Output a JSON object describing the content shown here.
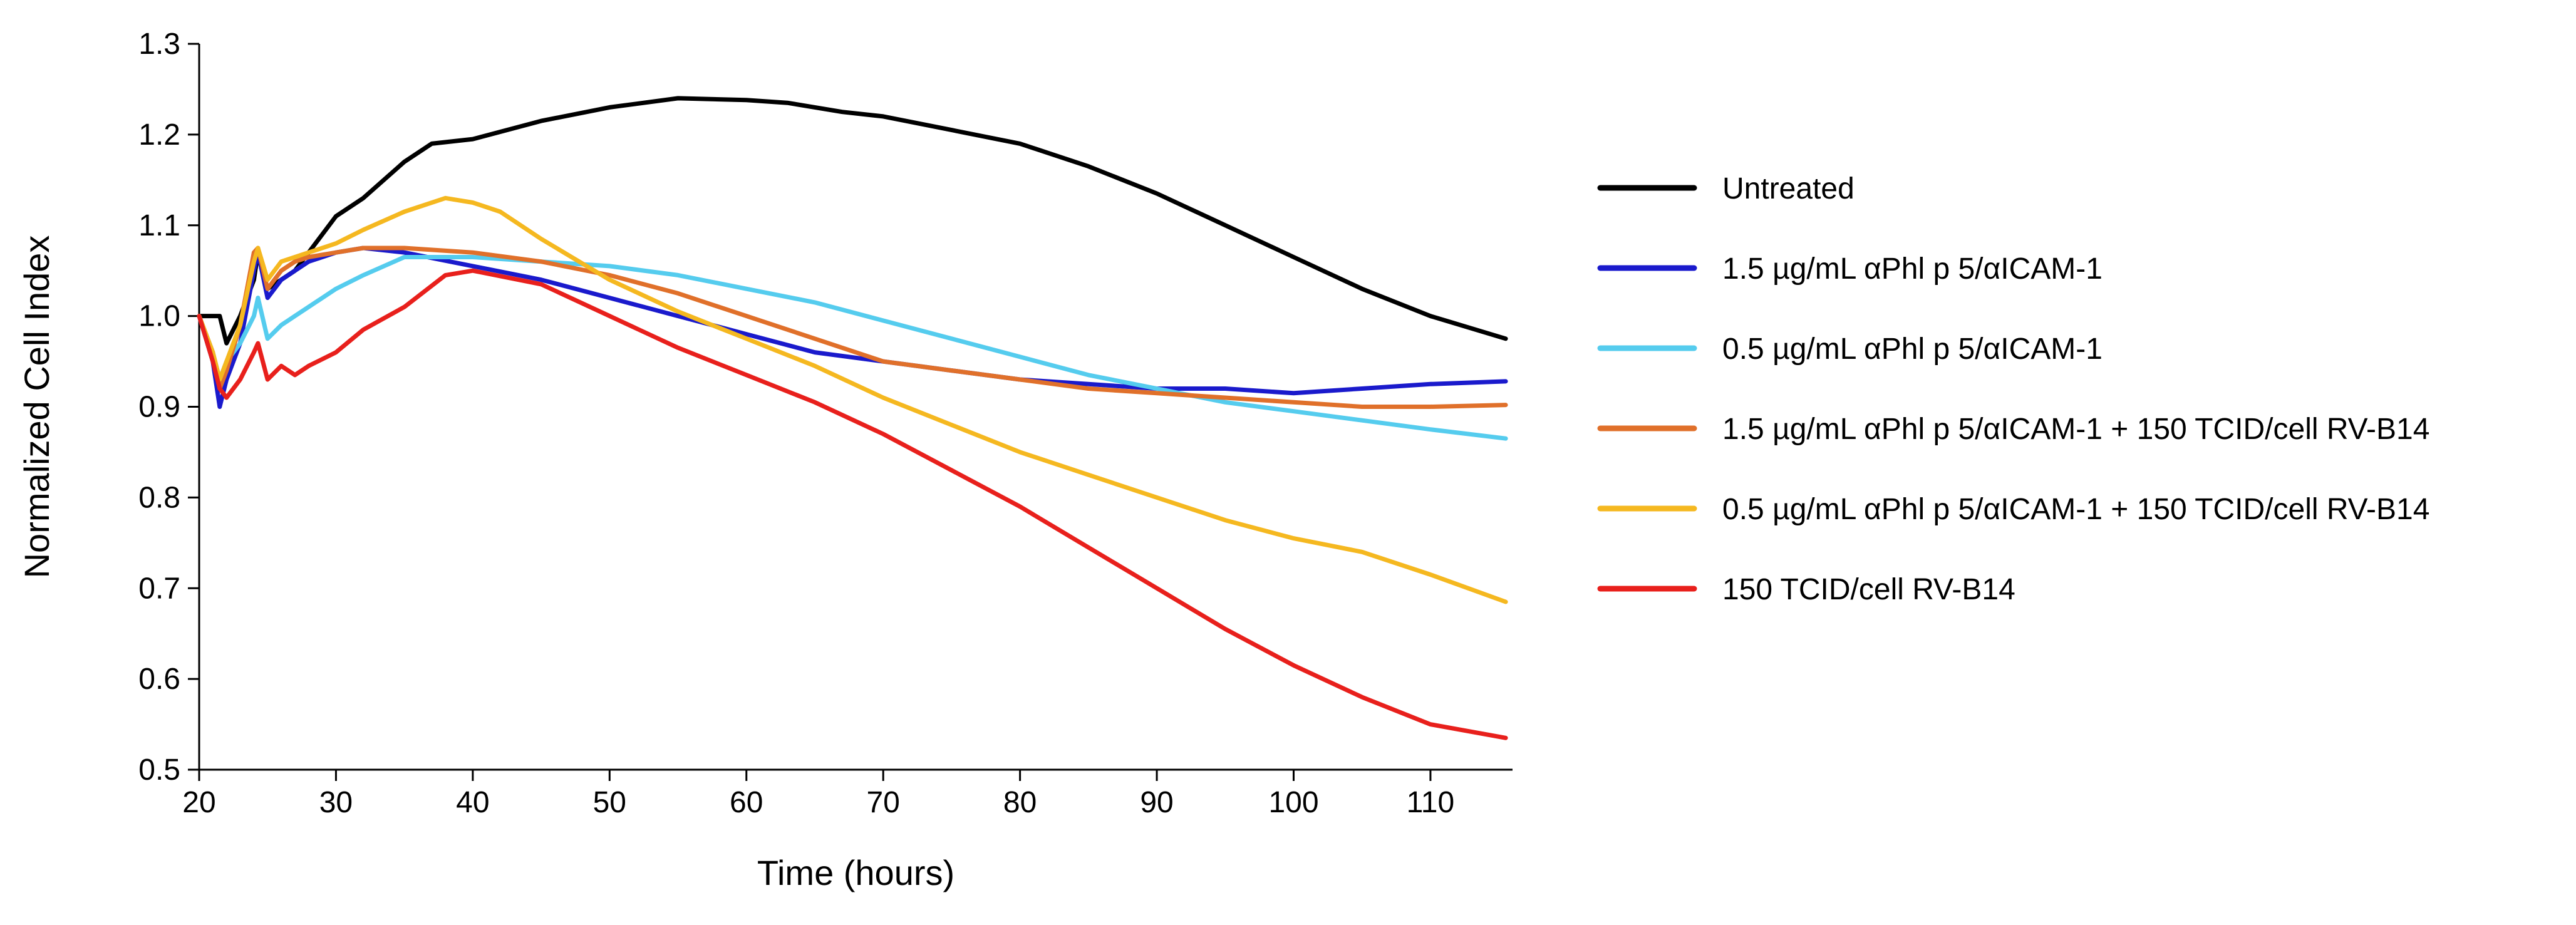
{
  "chart_data": {
    "type": "line",
    "title": "",
    "xlabel": "Time (hours)",
    "ylabel": "Normalized Cell Index",
    "xlim": [
      20,
      116
    ],
    "ylim": [
      0.5,
      1.3
    ],
    "xticks": [
      20,
      30,
      40,
      50,
      60,
      70,
      80,
      90,
      100,
      110
    ],
    "yticks": [
      0.5,
      0.6,
      0.7,
      0.8,
      0.9,
      1.0,
      1.1,
      1.2,
      1.3
    ],
    "ytick_labels": [
      "0.5",
      "0.6",
      "0.7",
      "0.8",
      "0.9",
      "1.0",
      "1.1",
      "1.2",
      "1.3"
    ],
    "grid": false,
    "legend_position": "right",
    "series": [
      {
        "name": "Untreated",
        "color": "#000000",
        "x": [
          20,
          21,
          21.5,
          22,
          23,
          24,
          24.3,
          25,
          26,
          27,
          28,
          30,
          32,
          35,
          37,
          40,
          45,
          50,
          55,
          60,
          63,
          67,
          70,
          75,
          80,
          85,
          90,
          95,
          100,
          105,
          110,
          115.5
        ],
        "y": [
          1.0,
          1.0,
          1.0,
          0.97,
          1.0,
          1.04,
          1.07,
          1.03,
          1.04,
          1.05,
          1.07,
          1.11,
          1.13,
          1.17,
          1.19,
          1.195,
          1.215,
          1.23,
          1.24,
          1.238,
          1.235,
          1.225,
          1.22,
          1.205,
          1.19,
          1.165,
          1.135,
          1.1,
          1.065,
          1.03,
          1.0,
          0.975
        ]
      },
      {
        "name": "1.5 µg/mL αPhl p 5/αICAM-1",
        "color": "#1a1acc",
        "x": [
          20,
          21,
          21.5,
          22,
          23,
          24,
          24.3,
          25,
          26,
          27,
          28,
          30,
          32,
          35,
          40,
          45,
          50,
          55,
          60,
          65,
          70,
          75,
          80,
          85,
          90,
          95,
          100,
          105,
          110,
          115.5
        ],
        "y": [
          1.0,
          0.95,
          0.9,
          0.93,
          0.97,
          1.05,
          1.07,
          1.02,
          1.04,
          1.05,
          1.06,
          1.07,
          1.075,
          1.07,
          1.055,
          1.04,
          1.02,
          1.0,
          0.98,
          0.96,
          0.95,
          0.94,
          0.93,
          0.925,
          0.92,
          0.92,
          0.915,
          0.92,
          0.925,
          0.928
        ]
      },
      {
        "name": "0.5 µg/mL αPhl p 5/αICAM-1",
        "color": "#55ccee",
        "x": [
          20,
          21,
          21.5,
          22,
          23,
          24,
          24.3,
          25,
          26,
          27,
          28,
          30,
          32,
          35,
          40,
          45,
          50,
          55,
          60,
          65,
          70,
          75,
          80,
          85,
          90,
          95,
          100,
          105,
          110,
          115.5
        ],
        "y": [
          1.0,
          0.96,
          0.93,
          0.95,
          0.97,
          1.0,
          1.02,
          0.975,
          0.99,
          1.0,
          1.01,
          1.03,
          1.045,
          1.065,
          1.065,
          1.06,
          1.055,
          1.045,
          1.03,
          1.015,
          0.995,
          0.975,
          0.955,
          0.935,
          0.92,
          0.905,
          0.895,
          0.885,
          0.875,
          0.865
        ]
      },
      {
        "name": "1.5 µg/mL αPhl p 5/αICAM-1 + 150 TCID/cell RV-B14",
        "color": "#e0702a",
        "x": [
          20,
          21,
          21.5,
          22,
          23,
          24,
          24.3,
          25,
          26,
          27,
          28,
          30,
          32,
          35,
          40,
          45,
          50,
          55,
          60,
          65,
          70,
          75,
          80,
          85,
          90,
          95,
          100,
          105,
          110,
          115.5
        ],
        "y": [
          1.0,
          0.96,
          0.92,
          0.94,
          0.99,
          1.07,
          1.075,
          1.03,
          1.05,
          1.06,
          1.065,
          1.07,
          1.075,
          1.075,
          1.07,
          1.06,
          1.045,
          1.025,
          1.0,
          0.975,
          0.95,
          0.94,
          0.93,
          0.92,
          0.915,
          0.91,
          0.905,
          0.9,
          0.9,
          0.902
        ]
      },
      {
        "name": "0.5 µg/mL αPhl p 5/αICAM-1 + 150 TCID/cell RV-B14",
        "color": "#f5b820",
        "x": [
          20,
          21,
          21.5,
          22,
          23,
          24,
          24.3,
          25,
          26,
          27,
          28,
          30,
          32,
          35,
          38,
          40,
          42,
          45,
          50,
          55,
          60,
          65,
          70,
          75,
          80,
          85,
          90,
          95,
          100,
          105,
          110,
          115.5
        ],
        "y": [
          1.0,
          0.96,
          0.93,
          0.95,
          0.99,
          1.06,
          1.075,
          1.04,
          1.06,
          1.065,
          1.07,
          1.08,
          1.095,
          1.115,
          1.13,
          1.125,
          1.115,
          1.085,
          1.04,
          1.005,
          0.975,
          0.945,
          0.91,
          0.88,
          0.85,
          0.825,
          0.8,
          0.775,
          0.755,
          0.74,
          0.715,
          0.685
        ]
      },
      {
        "name": "150 TCID/cell RV-B14",
        "color": "#e8201c",
        "x": [
          20,
          21,
          21.5,
          22,
          23,
          24,
          24.3,
          25,
          26,
          27,
          28,
          30,
          32,
          35,
          38,
          40,
          45,
          50,
          55,
          60,
          65,
          70,
          75,
          80,
          85,
          90,
          95,
          100,
          105,
          110,
          115.5
        ],
        "y": [
          1.0,
          0.95,
          0.92,
          0.91,
          0.93,
          0.96,
          0.97,
          0.93,
          0.945,
          0.935,
          0.945,
          0.96,
          0.985,
          1.01,
          1.045,
          1.05,
          1.035,
          1.0,
          0.965,
          0.935,
          0.905,
          0.87,
          0.83,
          0.79,
          0.745,
          0.7,
          0.655,
          0.615,
          0.58,
          0.55,
          0.535
        ]
      }
    ]
  }
}
